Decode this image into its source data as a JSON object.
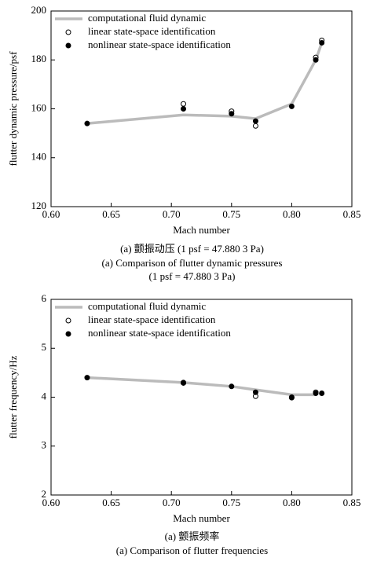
{
  "chart_data": [
    {
      "type": "line",
      "x_label": "Mach number",
      "y_label": "flutter dynamic pressure/psf",
      "captions": [
        "(a) 颤振动压 (1 psf = 47.880 3 Pa)",
        "(a) Comparison of flutter dynamic pressures",
        "(1 psf = 47.880 3 Pa)"
      ],
      "xlim": [
        0.6,
        0.85
      ],
      "xticks": [
        {
          "value": 0.6,
          "label": "0.60"
        },
        {
          "value": 0.65,
          "label": "0.65"
        },
        {
          "value": 0.7,
          "label": "0.70"
        },
        {
          "value": 0.75,
          "label": "0.75"
        },
        {
          "value": 0.8,
          "label": "0.80"
        },
        {
          "value": 0.85,
          "label": "0.85"
        }
      ],
      "ylim": [
        120,
        200
      ],
      "yticks": [
        120,
        140,
        160,
        180,
        200
      ],
      "legend": "upper left",
      "series": [
        {
          "name": "computational fluid dynamic",
          "color": "#bbbbbb",
          "marker": "line",
          "x": [
            0.63,
            0.71,
            0.75,
            0.77,
            0.8,
            0.82,
            0.825
          ],
          "values": [
            154,
            157.5,
            157,
            156,
            162,
            180,
            187
          ]
        },
        {
          "name": "linear state-space identification",
          "color": "#000000",
          "marker": "open",
          "x": [
            0.71,
            0.75,
            0.77,
            0.82,
            0.825
          ],
          "values": [
            162,
            159,
            153,
            181,
            188
          ]
        },
        {
          "name": "nonlinear state-space identification",
          "color": "#000000",
          "marker": "filled",
          "x": [
            0.63,
            0.71,
            0.75,
            0.77,
            0.8,
            0.82,
            0.825
          ],
          "values": [
            154,
            160,
            158,
            155,
            161,
            180,
            187
          ]
        }
      ]
    },
    {
      "type": "line",
      "x_label": "Mach number",
      "y_label": "flutter frequency/Hz",
      "captions": [
        "(a) 颤振频率",
        "(a) Comparison of flutter frequencies"
      ],
      "xlim": [
        0.6,
        0.85
      ],
      "xticks": [
        {
          "value": 0.6,
          "label": "0.60"
        },
        {
          "value": 0.65,
          "label": "0.65"
        },
        {
          "value": 0.7,
          "label": "0.70"
        },
        {
          "value": 0.75,
          "label": "0.75"
        },
        {
          "value": 0.8,
          "label": "0.80"
        },
        {
          "value": 0.85,
          "label": "0.85"
        }
      ],
      "ylim": [
        2,
        6
      ],
      "yticks": [
        2,
        3,
        4,
        5,
        6
      ],
      "legend": "upper left",
      "series": [
        {
          "name": "computational fluid dynamic",
          "color": "#bbbbbb",
          "marker": "line",
          "x": [
            0.63,
            0.71,
            0.75,
            0.77,
            0.8,
            0.82
          ],
          "values": [
            4.4,
            4.3,
            4.22,
            4.15,
            4.05,
            4.05
          ]
        },
        {
          "name": "linear state-space identification",
          "color": "#000000",
          "marker": "open",
          "x": [
            0.71,
            0.77,
            0.8,
            0.82
          ],
          "values": [
            4.29,
            4.02,
            4.0,
            4.1
          ]
        },
        {
          "name": "nonlinear state-space identification",
          "color": "#000000",
          "marker": "filled",
          "x": [
            0.63,
            0.71,
            0.75,
            0.77,
            0.8,
            0.82,
            0.825
          ],
          "values": [
            4.4,
            4.3,
            4.22,
            4.1,
            3.99,
            4.08,
            4.08
          ]
        }
      ]
    }
  ]
}
